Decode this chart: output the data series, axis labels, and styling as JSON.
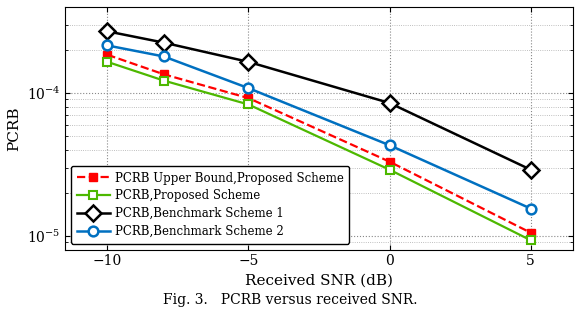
{
  "snr": [
    -10,
    -8,
    -5,
    0,
    5
  ],
  "pcrb_upper_bound": [
    0.000185,
    0.000135,
    9.2e-05,
    3.3e-05,
    1.05e-05
  ],
  "pcrb_proposed": [
    0.000165,
    0.000122,
    8.3e-05,
    2.9e-05,
    9.3e-06
  ],
  "pcrb_benchmark1": [
    0.00027,
    0.000225,
    0.000165,
    8.5e-05,
    2.9e-05
  ],
  "pcrb_benchmark2": [
    0.000215,
    0.00018,
    0.000108,
    4.3e-05,
    1.55e-05
  ],
  "color_upper_bound": "#ff0000",
  "color_proposed": "#4db800",
  "color_benchmark1": "#000000",
  "color_benchmark2": "#0070c0",
  "label_upper_bound": "PCRB Upper Bound,Proposed Scheme",
  "label_proposed": "PCRB,Proposed Scheme",
  "label_benchmark1": "PCRB,Benchmark Scheme 1",
  "label_benchmark2": "PCRB,Benchmark Scheme 2",
  "xlabel": "Received SNR (dB)",
  "ylabel": "PCRB",
  "caption": "Fig. 3.   PCRB versus received SNR.",
  "xlim": [
    -11.5,
    6.5
  ],
  "ylim": [
    8e-06,
    0.0004
  ],
  "xticks": [
    -10,
    -5,
    0,
    5
  ]
}
